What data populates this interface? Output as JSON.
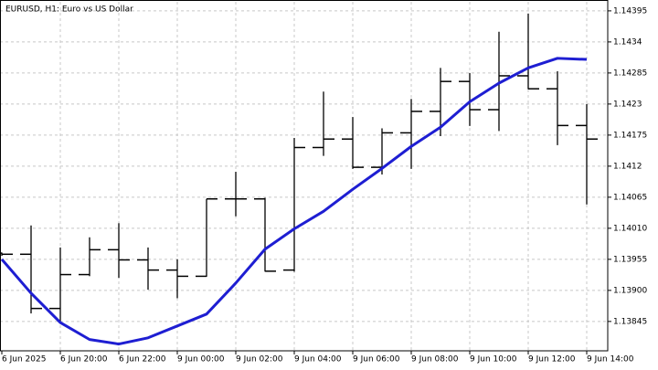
{
  "chart_data": {
    "type": "ohlc",
    "title": "EURUSD, H1:  Euro vs US Dollar",
    "categories": [
      "6 Jun 2025",
      null,
      "6 Jun 20:00",
      null,
      "6 Jun 22:00",
      null,
      "9 Jun 00:00",
      null,
      "9 Jun 02:00",
      null,
      "9 Jun 04:00",
      null,
      "9 Jun 06:00",
      null,
      "9 Jun 08:00",
      null,
      "9 Jun 10:00",
      null,
      "9 Jun 12:00",
      null,
      "9 Jun 14:00"
    ],
    "open": [
      1.13966,
      1.13964,
      1.13868,
      1.13928,
      1.13972,
      1.13954,
      1.13936,
      1.13925,
      1.14062,
      1.14062,
      1.13936,
      1.14153,
      1.14168,
      1.14118,
      1.14179,
      1.14217,
      1.1427,
      1.1422,
      1.1428,
      1.14257,
      1.14192
    ],
    "high": [
      1.13967,
      1.14015,
      1.13976,
      1.13994,
      1.14019,
      1.13976,
      1.13955,
      1.14062,
      1.1411,
      1.14064,
      1.1417,
      1.14252,
      1.14207,
      1.14187,
      1.14239,
      1.14294,
      1.14285,
      1.14358,
      1.1439,
      1.14288,
      1.1423
    ],
    "low": [
      1.13962,
      1.1386,
      1.13843,
      1.13926,
      1.13923,
      1.13902,
      1.13887,
      1.13925,
      1.14032,
      1.13934,
      1.13934,
      1.14139,
      1.14116,
      1.14106,
      1.14116,
      1.14174,
      1.14192,
      1.14183,
      1.14257,
      1.14158,
      1.14053
    ],
    "close": [
      1.13964,
      1.13868,
      1.13928,
      1.13972,
      1.13954,
      1.13936,
      1.13925,
      1.14062,
      1.14062,
      1.13934,
      1.14153,
      1.14168,
      1.14118,
      1.14179,
      1.14217,
      1.1427,
      1.1422,
      1.1428,
      1.14257,
      1.14192,
      1.14168
    ],
    "color": "#000000",
    "overlays": [
      {
        "type": "line",
        "color": "#1e1ed2",
        "values": [
          1.13955,
          1.13895,
          1.13843,
          1.13813,
          1.13805,
          1.13816,
          1.13837,
          1.13858,
          1.13913,
          1.13973,
          1.14009,
          1.1404,
          1.14079,
          1.14116,
          1.14155,
          1.14189,
          1.14234,
          1.14267,
          1.14294,
          1.14311,
          1.14309
        ]
      }
    ],
    "ylim": [
      1.13793,
      1.14411
    ],
    "yticks": [
      1.14395,
      1.1434,
      1.14285,
      1.1423,
      1.14175,
      1.1412,
      1.14065,
      {
        "value": 1.1401,
        "label": "1.14010"
      },
      1.13955,
      {
        "value": 1.139,
        "label": "1.13900"
      },
      1.13845
    ],
    "grid": true
  }
}
